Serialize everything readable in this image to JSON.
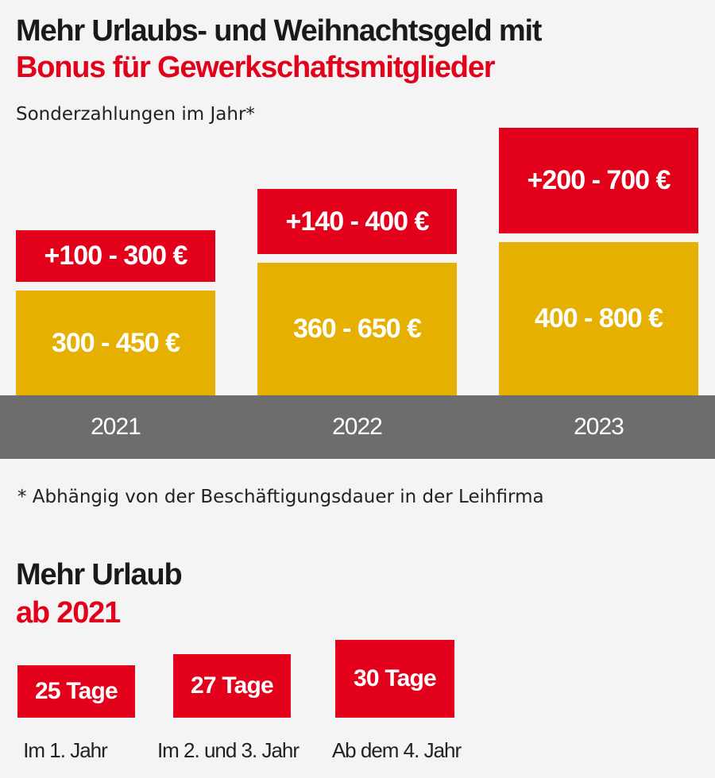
{
  "header": {
    "title_line1": "Mehr Urlaubs- und Weihnachtsgeld mit",
    "title_line2": "Bonus für Gewerkschaftsmitglieder",
    "subtitle": "Sonderzahlungen im Jahr*"
  },
  "colors": {
    "red": "#e2001a",
    "yellow": "#e6b000",
    "gray": "#6e6d6d",
    "background": "#f4f4f4"
  },
  "chart_data": {
    "type": "bar",
    "stacked": true,
    "title": "Mehr Urlaubs- und Weihnachtsgeld mit Bonus für Gewerkschaftsmitglieder",
    "subtitle": "Sonderzahlungen im Jahr*",
    "categories": [
      "2021",
      "2022",
      "2023"
    ],
    "series": [
      {
        "color": "#e6b000",
        "min": [
          300,
          360,
          400
        ],
        "max": [
          450,
          650,
          800
        ],
        "labels": [
          "300 - 450 €",
          "360 - 650 €",
          "400 - 800 €"
        ]
      },
      {
        "color": "#e2001a",
        "min": [
          100,
          140,
          200
        ],
        "max": [
          300,
          400,
          700
        ],
        "labels": [
          "+100 - 300 €",
          "+140 - 400 €",
          "+200 - 700 €"
        ]
      }
    ],
    "xlabel": "",
    "ylabel": "",
    "unit": "€"
  },
  "footnote": "* Abhängig von der Beschäftigungsdauer in der Leihfirma",
  "vacation": {
    "title_line1": "Mehr Urlaub",
    "title_line2": "ab 2021",
    "items": [
      {
        "value": "25 Tage",
        "label": "Im 1. Jahr"
      },
      {
        "value": "27 Tage",
        "label": "Im 2. und 3. Jahr"
      },
      {
        "value": "30 Tage",
        "label": "Ab dem 4. Jahr"
      }
    ]
  }
}
